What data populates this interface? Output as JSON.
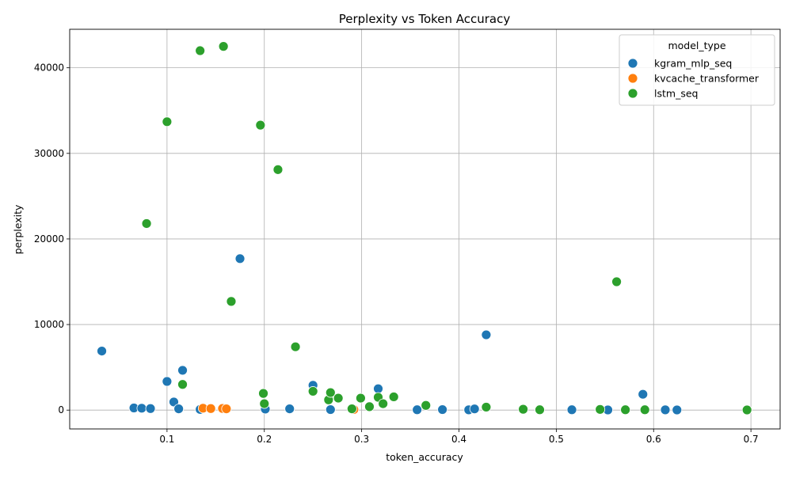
{
  "chart_data": {
    "type": "scatter",
    "title": "Perplexity vs Token Accuracy",
    "xlabel": "token_accuracy",
    "ylabel": "perplexity",
    "xlim": [
      0.0,
      0.73
    ],
    "ylim": [
      -2200,
      44500
    ],
    "xticks": [
      0.1,
      0.2,
      0.3,
      0.4,
      0.5,
      0.6,
      0.7
    ],
    "xtick_labels": [
      "0.1",
      "0.2",
      "0.3",
      "0.4",
      "0.5",
      "0.6",
      "0.7"
    ],
    "yticks": [
      0,
      10000,
      20000,
      30000,
      40000
    ],
    "ytick_labels": [
      "0",
      "10000",
      "20000",
      "30000",
      "40000"
    ],
    "grid": true,
    "legend": {
      "title": "model_type",
      "placement": "top-right"
    },
    "series": [
      {
        "name": "kgram_mlp_seq",
        "color": "#1f77b4",
        "points": [
          [
            0.033,
            6900
          ],
          [
            0.066,
            250
          ],
          [
            0.074,
            220
          ],
          [
            0.083,
            180
          ],
          [
            0.1,
            3350
          ],
          [
            0.107,
            950
          ],
          [
            0.112,
            150
          ],
          [
            0.116,
            4650
          ],
          [
            0.134,
            80
          ],
          [
            0.175,
            17700
          ],
          [
            0.201,
            120
          ],
          [
            0.226,
            150
          ],
          [
            0.25,
            2900
          ],
          [
            0.268,
            60
          ],
          [
            0.317,
            2500
          ],
          [
            0.357,
            40
          ],
          [
            0.383,
            60
          ],
          [
            0.41,
            30
          ],
          [
            0.416,
            140
          ],
          [
            0.428,
            8800
          ],
          [
            0.516,
            40
          ],
          [
            0.553,
            20
          ],
          [
            0.589,
            1850
          ],
          [
            0.612,
            30
          ],
          [
            0.624,
            20
          ]
        ]
      },
      {
        "name": "kvcache_transformer",
        "color": "#ff7f0e",
        "points": [
          [
            0.137,
            220
          ],
          [
            0.145,
            180
          ],
          [
            0.157,
            190
          ],
          [
            0.161,
            150
          ],
          [
            0.292,
            70
          ]
        ]
      },
      {
        "name": "lstm_seq",
        "color": "#2ca02c",
        "points": [
          [
            0.079,
            21800
          ],
          [
            0.1,
            33700
          ],
          [
            0.116,
            3000
          ],
          [
            0.134,
            42000
          ],
          [
            0.158,
            42500
          ],
          [
            0.166,
            12700
          ],
          [
            0.196,
            33300
          ],
          [
            0.199,
            1950
          ],
          [
            0.2,
            750
          ],
          [
            0.214,
            28100
          ],
          [
            0.232,
            7400
          ],
          [
            0.25,
            2200
          ],
          [
            0.266,
            1200
          ],
          [
            0.268,
            2050
          ],
          [
            0.276,
            1400
          ],
          [
            0.29,
            150
          ],
          [
            0.299,
            1400
          ],
          [
            0.308,
            400
          ],
          [
            0.317,
            1500
          ],
          [
            0.322,
            750
          ],
          [
            0.333,
            1550
          ],
          [
            0.366,
            550
          ],
          [
            0.428,
            350
          ],
          [
            0.466,
            100
          ],
          [
            0.483,
            40
          ],
          [
            0.545,
            80
          ],
          [
            0.562,
            15000
          ],
          [
            0.571,
            40
          ],
          [
            0.591,
            40
          ],
          [
            0.696,
            20
          ]
        ]
      }
    ]
  }
}
